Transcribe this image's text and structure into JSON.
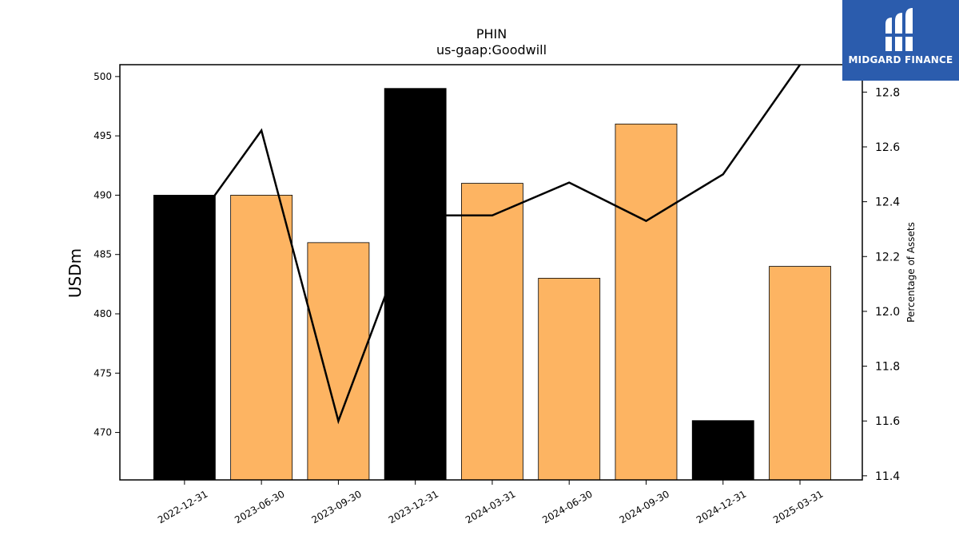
{
  "logo": {
    "text": "MIDGARD FINANCE",
    "color": "#2b5cad"
  },
  "chart_data": {
    "type": "bar",
    "title": "PHIN",
    "subtitle": "us-gaap:Goodwill",
    "ylabel": "USDm",
    "y2label": "Percentage of Assets",
    "categories": [
      "2022-12-31",
      "2023-06-30",
      "2023-09-30",
      "2023-12-31",
      "2024-03-31",
      "2024-06-30",
      "2024-09-30",
      "2024-12-31",
      "2025-03-31"
    ],
    "ylim": [
      466,
      501
    ],
    "y2lim": [
      11.385,
      12.9
    ],
    "yticks": [
      470,
      475,
      480,
      485,
      490,
      495,
      500
    ],
    "y2ticks": [
      11.4,
      11.6,
      11.8,
      12.0,
      12.2,
      12.4,
      12.6,
      12.8
    ],
    "series": [
      {
        "type": "bar",
        "values": [
          490,
          490,
          486,
          499,
          491,
          483,
          496,
          471,
          484
        ],
        "colors": [
          "#000000",
          "#fdb462",
          "#fdb462",
          "#000000",
          "#fdb462",
          "#fdb462",
          "#fdb462",
          "#000000",
          "#fdb462"
        ]
      },
      {
        "type": "line",
        "axis": "right",
        "color": "#000000",
        "values": [
          12.27,
          12.66,
          11.6,
          12.35,
          12.35,
          12.47,
          12.33,
          12.5,
          12.9
        ]
      }
    ],
    "grid": false,
    "legend": "none"
  }
}
